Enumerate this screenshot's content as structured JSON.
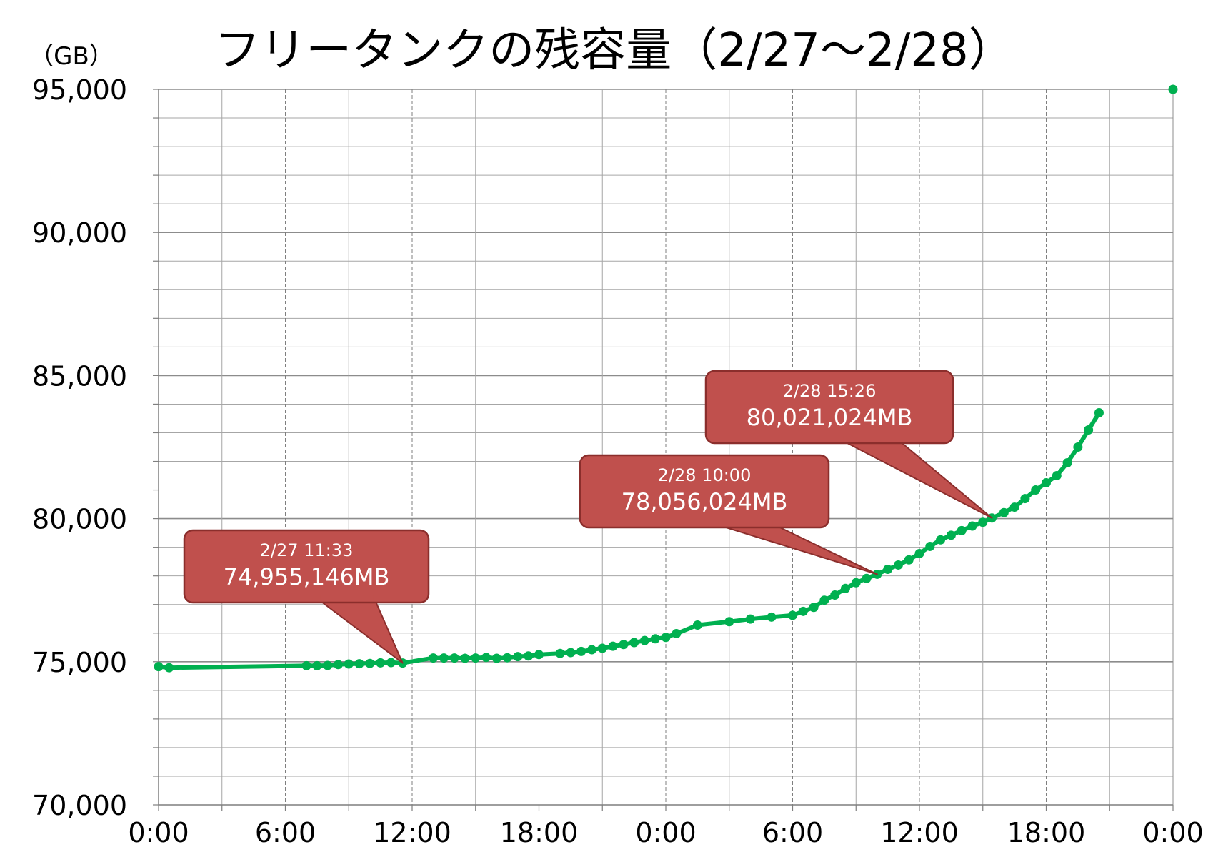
{
  "chart_data": {
    "type": "line",
    "title": "フリータンクの残容量（2/27〜2/28）",
    "y_unit": "（GB）",
    "ylim": [
      70000,
      95000
    ],
    "y_ticks": [
      70000,
      75000,
      80000,
      85000,
      90000,
      95000
    ],
    "y_tick_labels": [
      "70,000",
      "75,000",
      "80,000",
      "85,000",
      "90,000",
      "95,000"
    ],
    "x_range_hours": [
      0,
      48
    ],
    "x_ticks": [
      0,
      6,
      12,
      18,
      24,
      30,
      36,
      42,
      48
    ],
    "x_tick_labels": [
      "0:00",
      "6:00",
      "12:00",
      "18:00",
      "0:00",
      "6:00",
      "12:00",
      "18:00",
      "0:00"
    ],
    "grid": true,
    "line_color": "#00b050",
    "series": [
      {
        "points": [
          [
            0.0,
            74830
          ],
          [
            0.5,
            74790
          ],
          [
            7.0,
            74860
          ],
          [
            7.5,
            74860
          ],
          [
            8.0,
            74870
          ],
          [
            8.5,
            74900
          ],
          [
            9.0,
            74920
          ],
          [
            9.5,
            74930
          ],
          [
            10.0,
            74940
          ],
          [
            10.5,
            74960
          ],
          [
            11.0,
            74970
          ],
          [
            11.55,
            74955
          ],
          [
            13.0,
            75130
          ],
          [
            13.5,
            75130
          ],
          [
            14.0,
            75130
          ],
          [
            14.5,
            75120
          ],
          [
            15.0,
            75130
          ],
          [
            15.5,
            75150
          ],
          [
            16.0,
            75120
          ],
          [
            16.5,
            75140
          ],
          [
            17.0,
            75180
          ],
          [
            17.5,
            75200
          ],
          [
            18.0,
            75250
          ],
          [
            19.0,
            75290
          ],
          [
            19.5,
            75320
          ],
          [
            20.0,
            75360
          ],
          [
            20.5,
            75420
          ],
          [
            21.0,
            75470
          ],
          [
            21.5,
            75540
          ],
          [
            22.0,
            75600
          ],
          [
            22.5,
            75670
          ],
          [
            23.0,
            75740
          ],
          [
            23.5,
            75800
          ],
          [
            24.0,
            75850
          ],
          [
            24.5,
            75980
          ],
          [
            25.5,
            76280
          ],
          [
            27.0,
            76400
          ],
          [
            28.0,
            76490
          ],
          [
            29.0,
            76560
          ],
          [
            30.0,
            76620
          ],
          [
            30.5,
            76760
          ],
          [
            31.0,
            76900
          ],
          [
            31.5,
            77150
          ],
          [
            32.0,
            77330
          ],
          [
            32.5,
            77560
          ],
          [
            33.0,
            77760
          ],
          [
            33.5,
            77910
          ],
          [
            34.0,
            78056
          ],
          [
            34.5,
            78230
          ],
          [
            35.0,
            78380
          ],
          [
            35.5,
            78560
          ],
          [
            36.0,
            78780
          ],
          [
            36.5,
            79030
          ],
          [
            37.0,
            79260
          ],
          [
            37.5,
            79420
          ],
          [
            38.0,
            79580
          ],
          [
            38.5,
            79740
          ],
          [
            39.0,
            79870
          ],
          [
            39.43,
            80021
          ],
          [
            40.0,
            80210
          ],
          [
            40.5,
            80400
          ],
          [
            41.0,
            80700
          ],
          [
            41.5,
            81000
          ],
          [
            42.0,
            81250
          ],
          [
            42.5,
            81500
          ],
          [
            43.0,
            81950
          ],
          [
            43.5,
            82500
          ],
          [
            44.0,
            83100
          ],
          [
            44.5,
            83700
          ]
        ]
      }
    ],
    "outlier_point": [
      48,
      95000
    ],
    "callouts": [
      {
        "time": "2/27 11:33",
        "value": "74,955,146MB",
        "x": 11.55,
        "y": 74955
      },
      {
        "time": "2/28 10:00",
        "value": "78,056,024MB",
        "x": 34.0,
        "y": 78056
      },
      {
        "time": "2/28 15:26",
        "value": "80,021,024MB",
        "x": 39.43,
        "y": 80021
      }
    ],
    "callout_fill": "#c0504d",
    "callout_border": "#8b2e2c"
  }
}
